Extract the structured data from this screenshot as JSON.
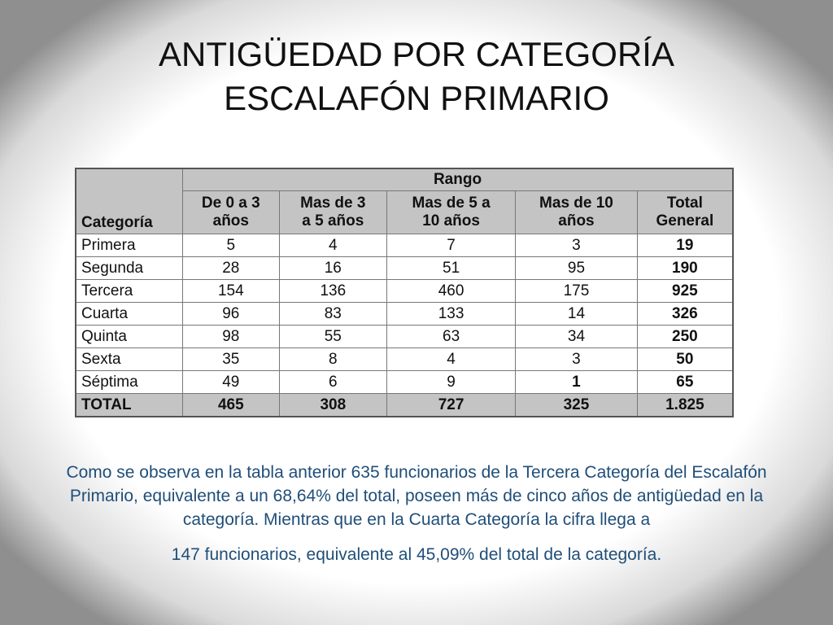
{
  "title": {
    "line1": "ANTIGÜEDAD POR CATEGORÍA",
    "line2": "ESCALAFÓN PRIMARIO"
  },
  "table": {
    "header_category": "Categoría",
    "header_range": "Rango",
    "columns": [
      {
        "line1": "De 0 a 3",
        "line2": "años"
      },
      {
        "line1": "Mas de 3",
        "line2": "a 5 años"
      },
      {
        "line1": "Mas de 5 a",
        "line2": "10 años"
      },
      {
        "line1": "Mas de 10",
        "line2": "años"
      },
      {
        "line1": "Total",
        "line2": "General"
      }
    ],
    "rows": [
      {
        "cat": "Primera",
        "v": [
          "5",
          "4",
          "7",
          "3",
          "19"
        ]
      },
      {
        "cat": "Segunda",
        "v": [
          "28",
          "16",
          "51",
          "95",
          "190"
        ]
      },
      {
        "cat": "Tercera",
        "v": [
          "154",
          "136",
          "460",
          "175",
          "925"
        ]
      },
      {
        "cat": "Cuarta",
        "v": [
          "96",
          "83",
          "133",
          "14",
          "326"
        ]
      },
      {
        "cat": "Quinta",
        "v": [
          "98",
          "55",
          "63",
          "34",
          "250"
        ]
      },
      {
        "cat": "Sexta",
        "v": [
          "35",
          "8",
          "4",
          "3",
          "50"
        ]
      },
      {
        "cat": "Séptima",
        "v": [
          "49",
          "6",
          "9",
          "1",
          "65"
        ]
      }
    ],
    "total": {
      "cat": "TOTAL",
      "v": [
        "465",
        "308",
        "727",
        "325",
        "1.825"
      ]
    }
  },
  "note": {
    "text": "Como se observa en la tabla anterior 635 funcionarios de la Tercera Categoría del Escalafón Primario, equivalente a un 68,64% del total, poseen más de cinco años de antigüedad en la categoría. Mientras que en la Cuarta Categoría la cifra llega a",
    "text_last": "147 funcionarios, equivalente al 45,09% del total de la categoría."
  }
}
